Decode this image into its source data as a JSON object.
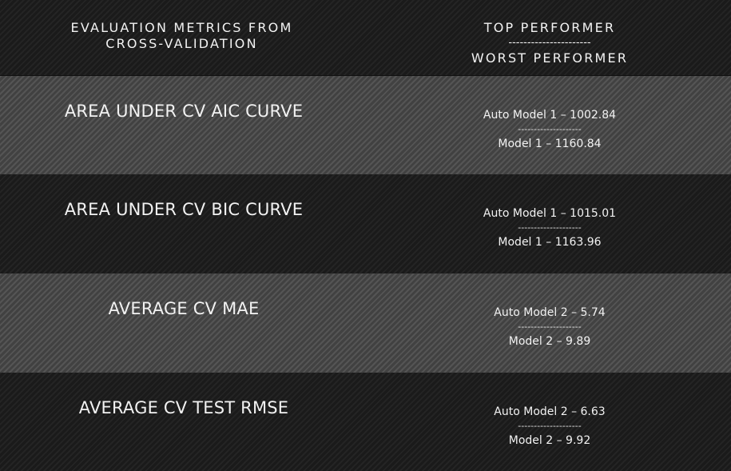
{
  "header": {
    "metric_line1": "EVALUATION METRICS FROM",
    "metric_line2": "CROSS-VALIDATION",
    "top": "TOP PERFORMER",
    "separator": "----------------------",
    "worst": "WORST PERFORMER"
  },
  "rows": [
    {
      "metric": "AREA UNDER CV AIC CURVE",
      "top": "Auto Model 1 – 1002.84",
      "separator": "--------------------",
      "worst": "Model 1 – 1160.84"
    },
    {
      "metric": "AREA UNDER CV BIC CURVE",
      "top": "Auto Model 1 – 1015.01",
      "separator": "--------------------",
      "worst": "Model 1 – 1163.96"
    },
    {
      "metric": "AVERAGE CV MAE",
      "top": "Auto Model 2 – 5.74",
      "separator": "--------------------",
      "worst": "Model 2 – 9.89"
    },
    {
      "metric": "AVERAGE CV TEST RMSE",
      "top": "Auto Model 2 – 6.63",
      "separator": "--------------------",
      "worst": "Model 2 – 9.92"
    }
  ]
}
